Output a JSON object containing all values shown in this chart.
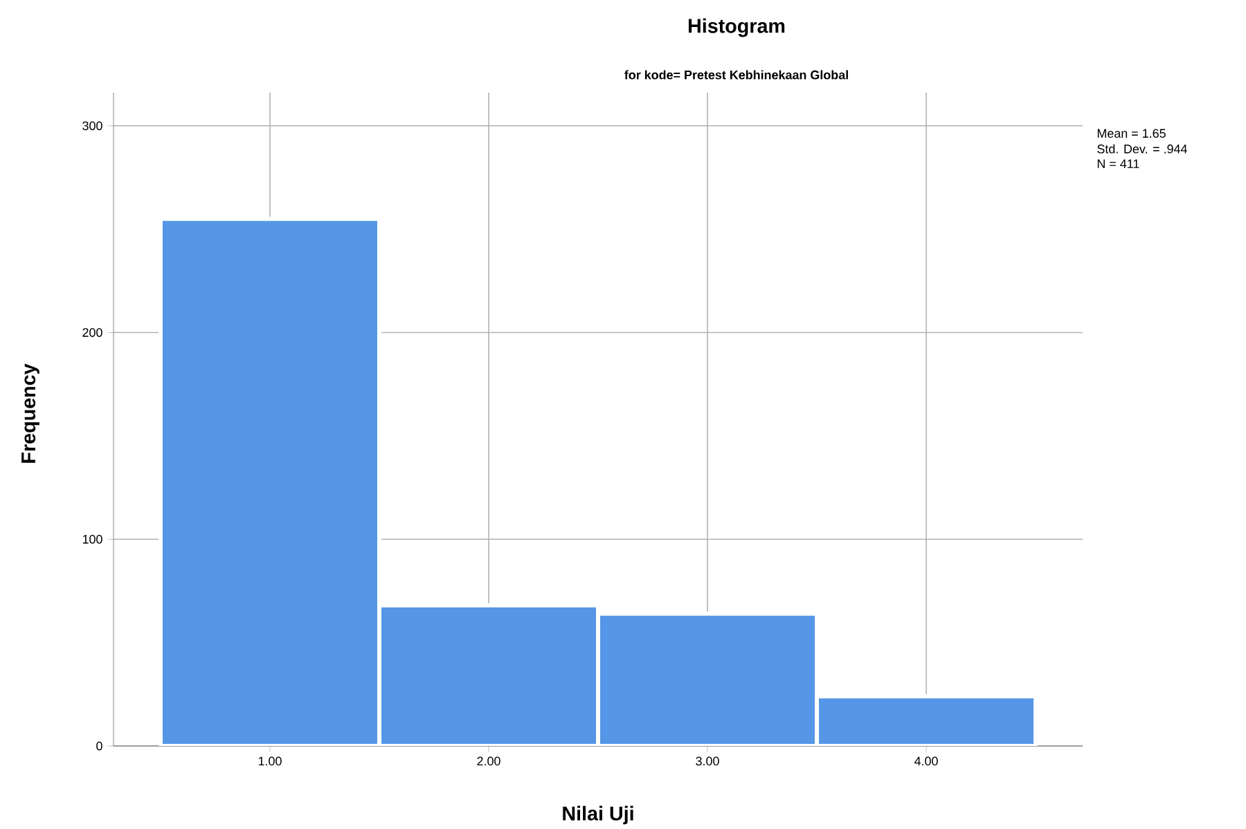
{
  "chart_data": {
    "type": "histogram",
    "title": "Histogram",
    "subtitle": "for kode= Pretest Kebhinekaan Global",
    "xlabel": "Nilai Uji",
    "ylabel": "Frequency",
    "bins": [
      0.5,
      1.5,
      2.5,
      3.5,
      4.5
    ],
    "values": [
      255,
      68,
      64,
      24
    ],
    "color": "#5596e6",
    "xlim": [
      0.285,
      4.715
    ],
    "xticks": [
      {
        "value": 1,
        "label": "1.00"
      },
      {
        "value": 2,
        "label": "2.00"
      },
      {
        "value": 3,
        "label": "3.00"
      },
      {
        "value": 4,
        "label": "4.00"
      }
    ],
    "ylim": [
      0,
      316
    ],
    "yticks": [
      0,
      100,
      200,
      300
    ],
    "grid": true,
    "annotations": [
      "Mean = 1.65",
      "Std. Dev. = .944",
      "N = 411"
    ]
  }
}
